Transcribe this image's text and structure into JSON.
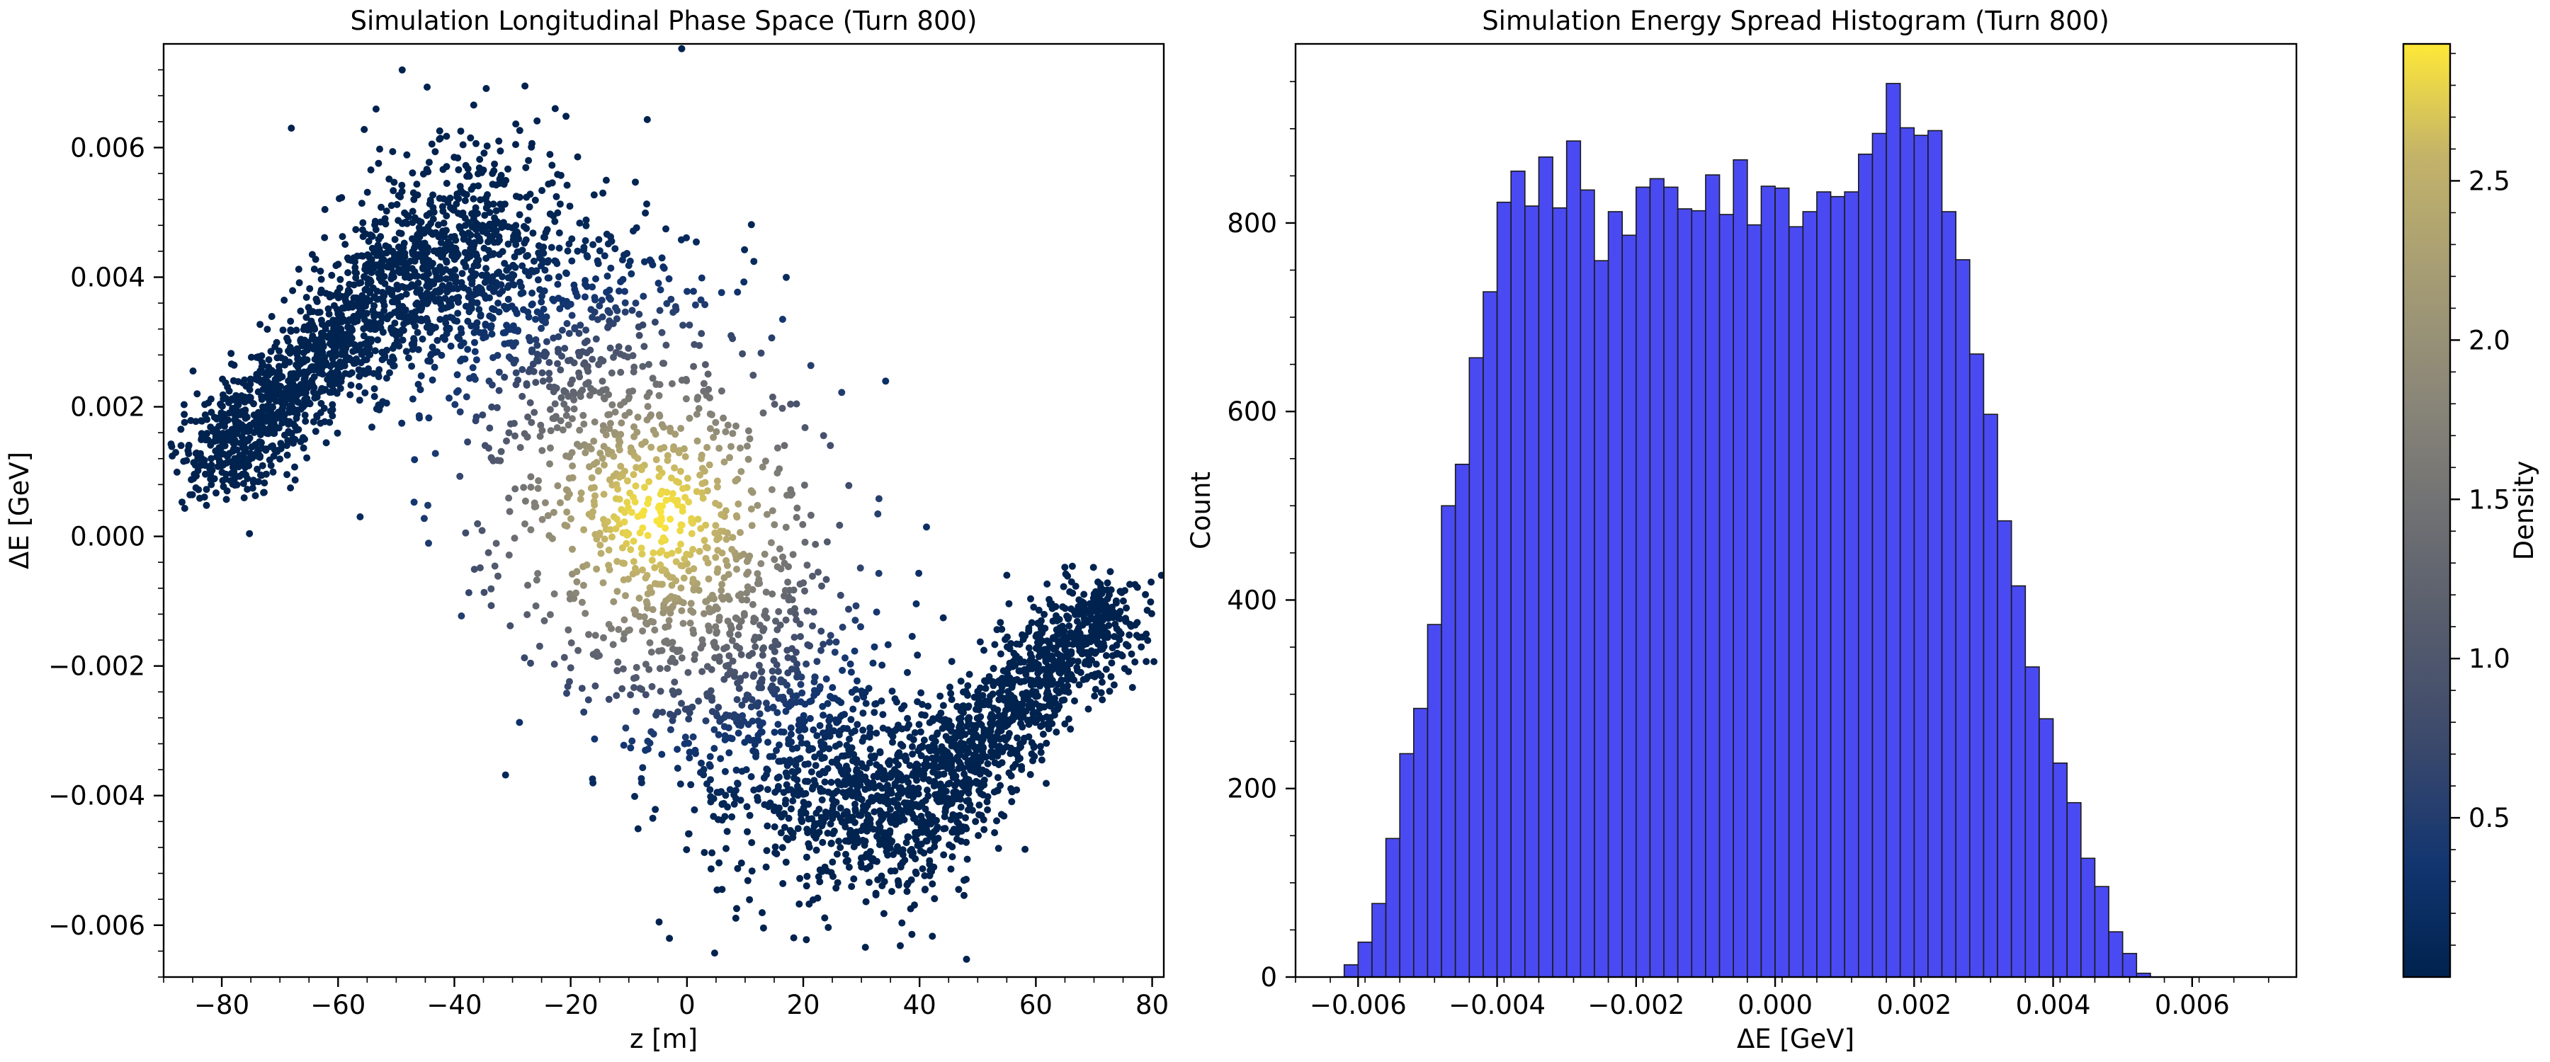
{
  "chart_data": [
    {
      "type": "scatter",
      "title": "Simulation Longitudinal Phase Space (Turn 800)",
      "xlabel": "z [m]",
      "ylabel": "ΔE [GeV]",
      "xlim": [
        -90,
        82
      ],
      "ylim": [
        -0.0068,
        0.0076
      ],
      "xticks": [
        -80,
        -60,
        -40,
        -20,
        0,
        20,
        40,
        60,
        80
      ],
      "yticks": [
        -0.006,
        -0.004,
        -0.002,
        0.0,
        0.002,
        0.004,
        0.006
      ],
      "xtick_labels": [
        "−80",
        "−60",
        "−40",
        "−20",
        "0",
        "20",
        "40",
        "60",
        "80"
      ],
      "ytick_labels": [
        "−0.006",
        "−0.004",
        "−0.002",
        "0.000",
        "0.002",
        "0.004",
        "0.006"
      ],
      "point_color_encoding": "density (cividis colormap)",
      "approx_distribution": {
        "shape": "S-shaped filament, density peak near z ≈ -5 m, ΔE ≈ 0.0003 GeV",
        "spine": [
          {
            "z": -82,
            "dE": 0.001
          },
          {
            "z": -72,
            "dE": 0.002
          },
          {
            "z": -60,
            "dE": 0.003
          },
          {
            "z": -48,
            "dE": 0.0041
          },
          {
            "z": -35,
            "dE": 0.0046
          },
          {
            "z": -22,
            "dE": 0.0034
          },
          {
            "z": -10,
            "dE": 0.0012
          },
          {
            "z": 0,
            "dE": -0.0007
          },
          {
            "z": 12,
            "dE": -0.0026
          },
          {
            "z": 25,
            "dE": -0.0041
          },
          {
            "z": 38,
            "dE": -0.0043
          },
          {
            "z": 50,
            "dE": -0.0032
          },
          {
            "z": 62,
            "dE": -0.002
          },
          {
            "z": 74,
            "dE": -0.0011
          }
        ]
      }
    },
    {
      "type": "bar",
      "title": "Simulation Energy Spread Histogram (Turn 800)",
      "xlabel": "ΔE [GeV]",
      "ylabel": "Count",
      "xlim": [
        -0.0069,
        0.0075
      ],
      "ylim": [
        0,
        990
      ],
      "xticks": [
        -0.006,
        -0.004,
        -0.002,
        0.0,
        0.002,
        0.004,
        0.006
      ],
      "yticks": [
        0,
        200,
        400,
        600,
        800
      ],
      "xtick_labels": [
        "−0.006",
        "−0.004",
        "−0.002",
        "0.000",
        "0.002",
        "0.004",
        "0.006"
      ],
      "ytick_labels": [
        "0",
        "200",
        "400",
        "600",
        "800"
      ],
      "bar_color": "#4a4af2",
      "bin_start": -0.0062,
      "bin_width": 0.0002,
      "values": [
        13,
        37,
        78,
        147,
        237,
        285,
        374,
        500,
        544,
        657,
        727,
        822,
        855,
        818,
        870,
        816,
        887,
        835,
        760,
        812,
        787,
        838,
        847,
        838,
        815,
        813,
        851,
        809,
        867,
        798,
        839,
        837,
        796,
        812,
        833,
        828,
        833,
        873,
        895,
        948,
        901,
        893,
        898,
        812,
        761,
        661,
        597,
        484,
        415,
        329,
        274,
        227,
        185,
        126,
        96,
        48,
        25,
        4
      ]
    }
  ],
  "colorbar": {
    "label": "Density",
    "colormap": "cividis",
    "min": 0.0,
    "max": 2.93,
    "ticks": [
      0.5,
      1.0,
      1.5,
      2.0,
      2.5
    ],
    "tick_labels": [
      "0.5",
      "1.0",
      "1.5",
      "2.0",
      "2.5"
    ]
  }
}
